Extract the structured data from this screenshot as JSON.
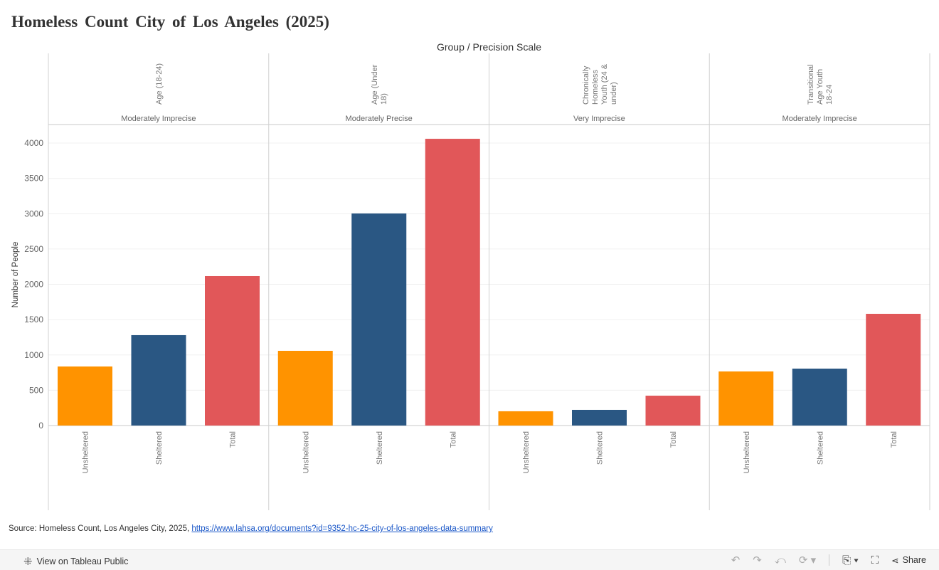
{
  "title": "Homeless Count City of Los Angeles (2025)",
  "source": {
    "prefix": "Source: Homeless Count, Los Angeles City, 2025, ",
    "link": "https://www.lahsa.org/documents?id=9352-hc-25-city-of-los-angeles-data-summary"
  },
  "toolbar": {
    "view_label": "View on Tableau Public",
    "share_label": "Share",
    "icons": [
      "undo-icon",
      "redo-icon",
      "revert-icon",
      "refresh-icon",
      "download-icon",
      "fullscreen-icon",
      "share-icon"
    ]
  },
  "chart_data": {
    "type": "bar",
    "title": "",
    "column_header": "Group / Precision Scale",
    "ylabel": "Number of People",
    "ylim": [
      0,
      4260
    ],
    "yticks": [
      0,
      500,
      1000,
      1500,
      2000,
      2500,
      3000,
      3500,
      4000
    ],
    "grid": true,
    "categories": [
      "Unsheltered",
      "Sheltered",
      "Total"
    ],
    "colors": {
      "Unsheltered": "#ff9300",
      "Sheltered": "#2a5783",
      "Total": "#e15759"
    },
    "panels": [
      {
        "group": "Age (18-24)",
        "precision": "Moderately Imprecise",
        "values": [
          836,
          1280,
          2116
        ]
      },
      {
        "group": "Age (Under 18)",
        "precision": "Moderately Precise",
        "values": [
          1058,
          3003,
          4060
        ]
      },
      {
        "group": "Chronically Homeless Youth (24 & under)",
        "precision": "Very Imprecise",
        "values": [
          202,
          222,
          423
        ]
      },
      {
        "group": "Transitional Age Youth 18-24",
        "precision": "Moderately Imprecise",
        "values": [
          766,
          806,
          1582
        ]
      }
    ]
  }
}
